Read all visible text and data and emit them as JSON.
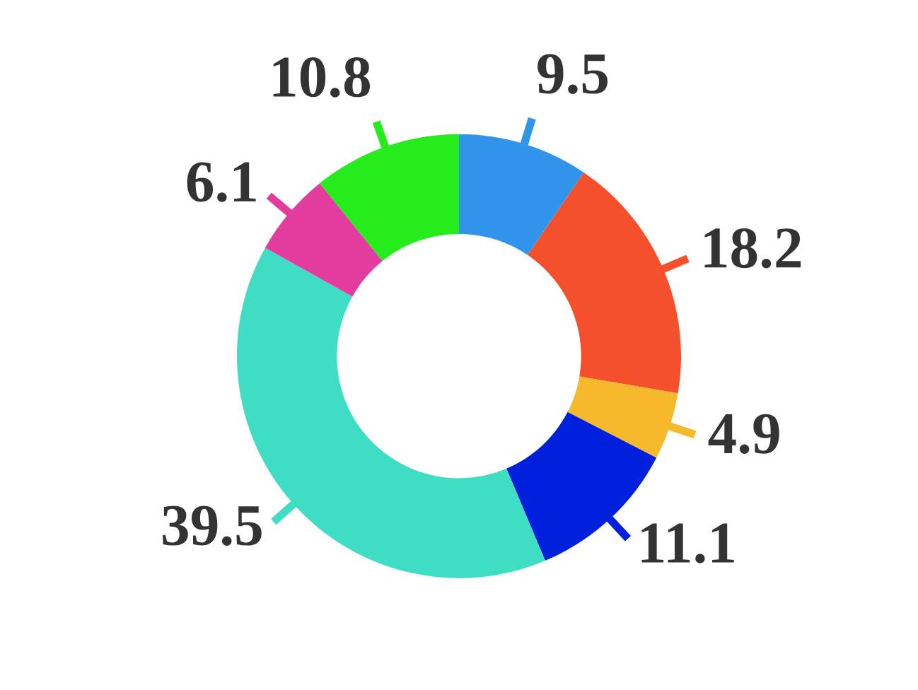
{
  "chart_data": {
    "type": "donut",
    "categories": [
      null,
      null,
      null,
      null,
      null,
      null,
      null
    ],
    "values": [
      9.5,
      18.2,
      4.9,
      11.1,
      39.5,
      6.1,
      10.8
    ],
    "colors": [
      "#3094ea",
      "#f54f2b",
      "#f6b92b",
      "#0020dd",
      "#3fdec4",
      "#e23c9f",
      "#25ec1a"
    ],
    "data_labels": true
  }
}
